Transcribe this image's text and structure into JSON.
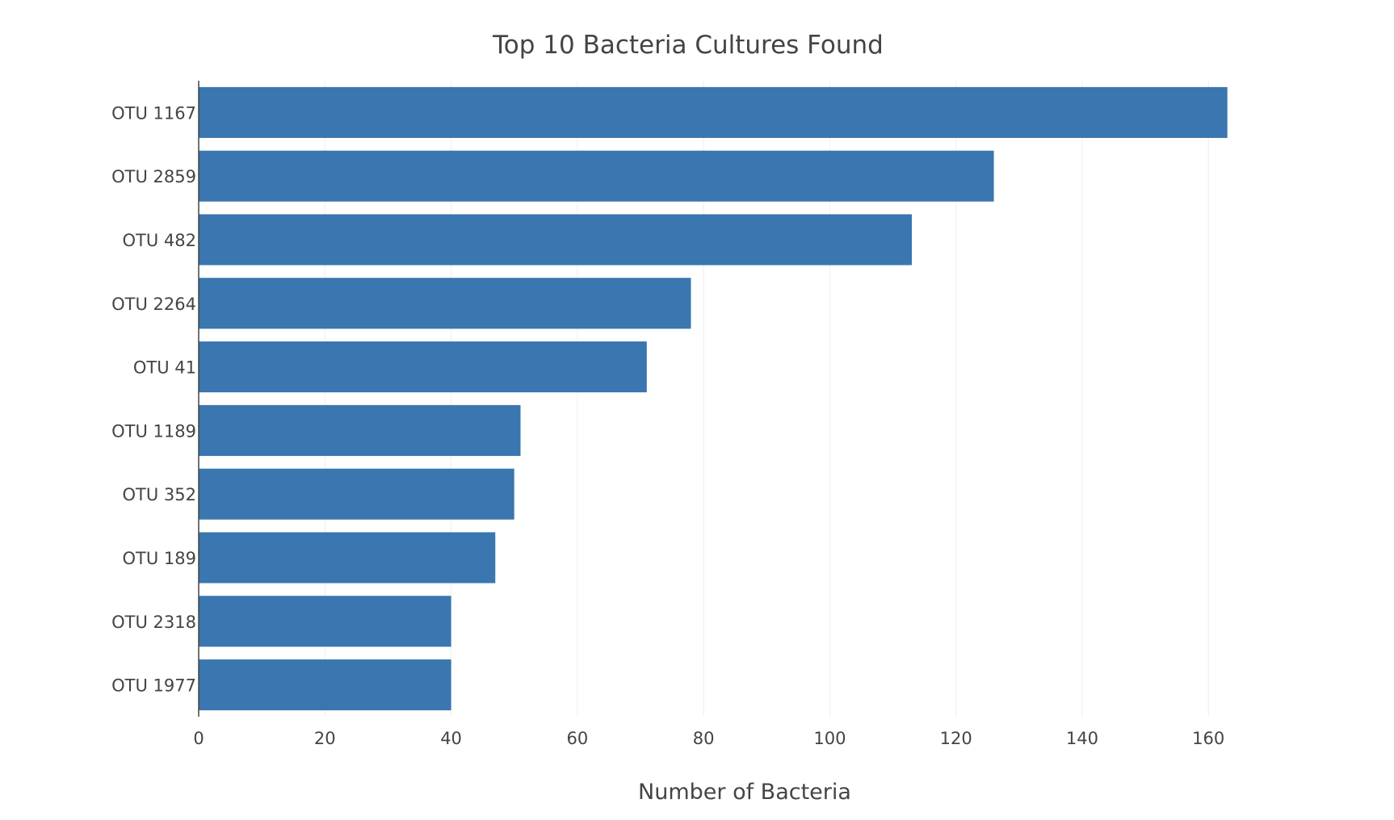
{
  "chart_data": {
    "type": "bar",
    "orientation": "horizontal",
    "title": "Top 10 Bacteria Cultures Found",
    "xlabel": "Number of Bacteria",
    "ylabel": "",
    "categories": [
      "OTU 1167",
      "OTU 2859",
      "OTU 482",
      "OTU 2264",
      "OTU 41",
      "OTU 1189",
      "OTU 352",
      "OTU 189",
      "OTU 2318",
      "OTU 1977"
    ],
    "values": [
      163,
      126,
      113,
      78,
      71,
      51,
      50,
      47,
      40,
      40
    ],
    "xlim": [
      0,
      172
    ],
    "xticks": [
      0,
      20,
      40,
      60,
      80,
      100,
      120,
      140,
      160
    ],
    "grid": true,
    "legend": "none",
    "bar_color": "#3a76af"
  }
}
